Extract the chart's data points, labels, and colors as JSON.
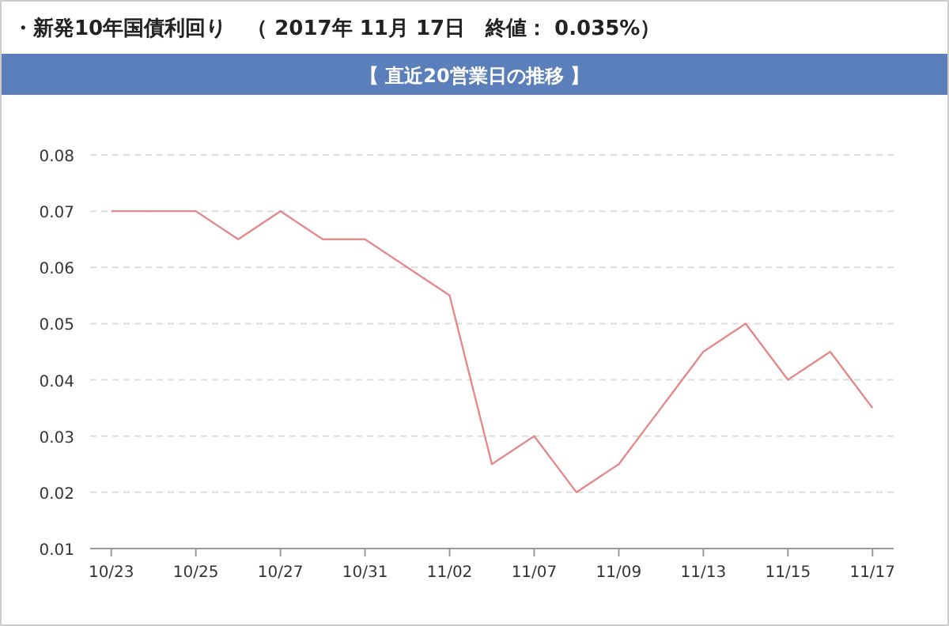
{
  "chart_data": {
    "type": "line",
    "title": "・新発10年国債利回り　（ 2017年 11月 17日　終値： 0.035%）",
    "subtitle": "【 直近20営業日の推移 】",
    "categories": [
      "10/23",
      null,
      "10/25",
      null,
      "10/27",
      null,
      "10/31",
      null,
      "11/02",
      null,
      "11/07",
      null,
      "11/09",
      null,
      "11/13",
      null,
      "11/15",
      null,
      "11/17"
    ],
    "series": [
      {
        "color": "#e48a8a",
        "values": [
          0.07,
          0.07,
          0.07,
          0.065,
          0.07,
          0.065,
          0.065,
          0.06,
          0.055,
          0.025,
          0.03,
          0.02,
          0.025,
          0.035,
          0.045,
          0.05,
          0.04,
          0.045,
          0.035
        ]
      }
    ],
    "ylim": [
      0.01,
      0.08
    ],
    "yticks": [
      0.01,
      0.02,
      0.03,
      0.04,
      0.05,
      0.06,
      0.07,
      0.08
    ],
    "grid": "y",
    "marker": "none",
    "line_style": "solid"
  }
}
